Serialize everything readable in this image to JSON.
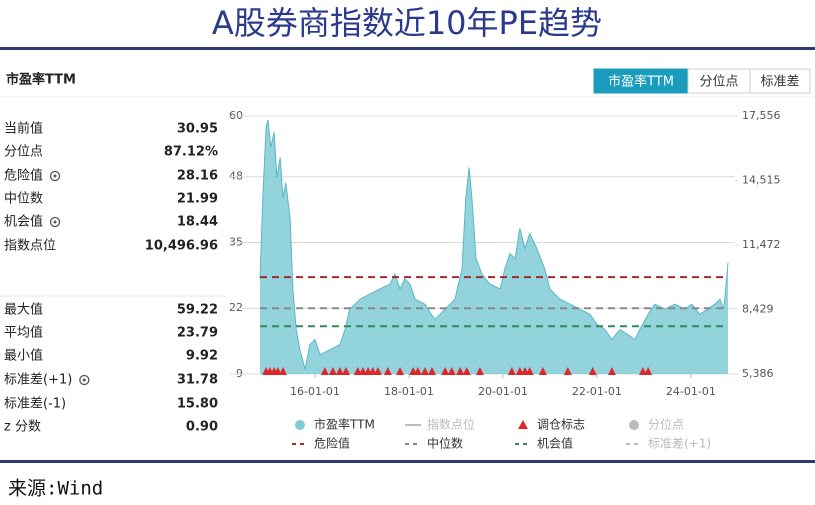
{
  "title": "A股券商指数近10年PE趋势",
  "source": "来源:Wind",
  "tabs": [
    "市盈率TTM",
    "分位点",
    "标准差"
  ],
  "stats": {
    "heading": "市盈率TTM",
    "groups": [
      [
        {
          "label": "当前值",
          "value": "30.95"
        },
        {
          "label": "分位点",
          "value": "87.12%"
        },
        {
          "label": "危险值",
          "value": "28.16",
          "icon": true
        },
        {
          "label": "中位数",
          "value": "21.99"
        },
        {
          "label": "机会值",
          "value": "18.44",
          "icon": true
        },
        {
          "label": "指数点位",
          "value": "10,496.96"
        }
      ],
      [
        {
          "label": "最大值",
          "value": "59.22"
        },
        {
          "label": "平均值",
          "value": "23.79"
        },
        {
          "label": "最小值",
          "value": "9.92"
        },
        {
          "label": "标准差(+1)",
          "value": "31.78",
          "icon": true
        },
        {
          "label": "标准差(-1)",
          "value": "15.80"
        },
        {
          "label": "z 分数",
          "value": "0.90"
        }
      ]
    ]
  },
  "chart_data": {
    "type": "area",
    "x": [
      2014.83,
      2014.89,
      2014.96,
      2015.0,
      2015.06,
      2015.13,
      2015.19,
      2015.26,
      2015.32,
      2015.38,
      2015.47,
      2015.53,
      2015.6,
      2015.68,
      2015.79,
      2015.89,
      2016.0,
      2016.11,
      2016.32,
      2016.53,
      2016.64,
      2016.74,
      2016.96,
      2017.17,
      2017.38,
      2017.6,
      2017.7,
      2017.81,
      2017.91,
      2018.02,
      2018.13,
      2018.34,
      2018.55,
      2018.77,
      2018.98,
      2019.13,
      2019.21,
      2019.28,
      2019.34,
      2019.43,
      2019.55,
      2019.72,
      2019.94,
      2020.04,
      2020.15,
      2020.26,
      2020.36,
      2020.47,
      2020.57,
      2020.72,
      2020.89,
      2021.0,
      2021.21,
      2021.43,
      2021.64,
      2021.85,
      2022.0,
      2022.17,
      2022.32,
      2022.49,
      2022.66,
      2022.81,
      2022.91,
      2023.09,
      2023.23,
      2023.45,
      2023.66,
      2023.87,
      2024.02,
      2024.19,
      2024.36,
      2024.51,
      2024.62,
      2024.7,
      2024.79
    ],
    "series": [
      {
        "name": "市盈率TTM",
        "color": "#7fcbd6",
        "values": [
          27.8,
          43.8,
          57.8,
          59.22,
          53.8,
          56.8,
          47.8,
          51.8,
          43.8,
          46.8,
          39.8,
          25.8,
          17.8,
          13.8,
          9.92,
          14.8,
          15.8,
          12.8,
          13.8,
          14.8,
          17.8,
          21.8,
          23.8,
          24.8,
          25.8,
          26.8,
          28.8,
          25.8,
          27.8,
          26.8,
          23.8,
          22.8,
          19.8,
          21.8,
          23.8,
          29.8,
          43.8,
          49.8,
          43.8,
          31.8,
          28.8,
          26.8,
          25.8,
          29.8,
          32.8,
          31.8,
          37.8,
          33.8,
          36.8,
          33.8,
          29.8,
          25.8,
          23.8,
          22.8,
          21.8,
          20.8,
          18.8,
          17.8,
          15.8,
          17.8,
          16.8,
          15.8,
          17.8,
          20.8,
          22.8,
          21.8,
          22.8,
          21.8,
          22.8,
          20.8,
          21.8,
          22.8,
          23.8,
          21.8,
          30.95
        ]
      }
    ],
    "markers": {
      "name": "调仓标志",
      "color": "#e0262b",
      "x": [
        2014.96,
        2015.04,
        2015.13,
        2015.21,
        2015.32,
        2016.21,
        2016.38,
        2016.53,
        2016.66,
        2016.91,
        2017.02,
        2017.13,
        2017.23,
        2017.34,
        2017.55,
        2017.81,
        2018.09,
        2018.19,
        2018.34,
        2018.49,
        2018.77,
        2018.91,
        2019.09,
        2019.23,
        2019.51,
        2020.19,
        2020.36,
        2020.47,
        2020.57,
        2020.85,
        2021.38,
        2021.91,
        2022.32,
        2022.98,
        2023.09
      ]
    },
    "reference_lines": [
      {
        "name": "危险值",
        "value": 28.16,
        "color": "#a52a2a"
      },
      {
        "name": "中位数",
        "value": 21.99,
        "color": "#888888"
      },
      {
        "name": "机会值",
        "value": 18.44,
        "color": "#2e8b57"
      }
    ],
    "inactive_legend": [
      {
        "name": "指数点位",
        "symbol": "line"
      },
      {
        "name": "分位点",
        "symbol": "circle"
      },
      {
        "name": "标准差(+1)",
        "symbol": "dash"
      }
    ],
    "xlim": [
      2014.83,
      2024.79
    ],
    "xticks": [
      {
        "value": 2016,
        "label": "16-01-01"
      },
      {
        "value": 2018,
        "label": "18-01-01"
      },
      {
        "value": 2020,
        "label": "20-01-01"
      },
      {
        "value": 2022,
        "label": "22-01-01"
      },
      {
        "value": 2024,
        "label": "24-01-01"
      }
    ],
    "ylim": [
      9,
      60
    ],
    "yticks": [
      9,
      22,
      35,
      48,
      60
    ],
    "y2lim": [
      5386,
      17556
    ],
    "y2ticks": [
      {
        "value": 5386,
        "label": "5,386"
      },
      {
        "value": 8429,
        "label": "8,429"
      },
      {
        "value": 11472,
        "label": "11,472"
      },
      {
        "value": 14515,
        "label": "14,515"
      },
      {
        "value": 17556,
        "label": "17,556"
      }
    ],
    "grid": true
  }
}
